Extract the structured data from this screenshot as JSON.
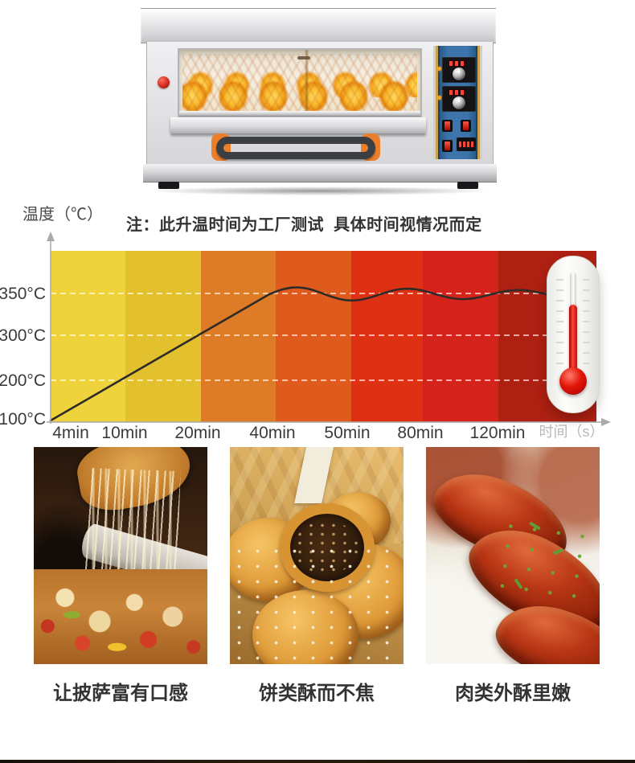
{
  "chart_data": {
    "type": "line",
    "note": "注：此升温时间为工厂测试  具体时间视情况而定",
    "ylabel": "温度（℃）",
    "xlabel": "时间（s）",
    "x_tick_labels": [
      "4min",
      "10min",
      "20min",
      "40min",
      "50min",
      "80min",
      "120min"
    ],
    "y_tick_labels": [
      "350°C",
      "300°C",
      "200°C",
      "100°C"
    ],
    "y_tick_values": [
      350,
      300,
      200,
      100
    ],
    "ylim": [
      100,
      400
    ],
    "series": [
      {
        "name": "oven-heating-curve",
        "points_time_min_vs_degC": [
          [
            0,
            100
          ],
          [
            4,
            125
          ],
          [
            10,
            165
          ],
          [
            20,
            230
          ],
          [
            40,
            350
          ],
          [
            50,
            350
          ],
          [
            80,
            350
          ],
          [
            120,
            350
          ]
        ],
        "behavior_after_40min": "oscillates slightly around 350°C"
      }
    ],
    "band_colors": [
      "#eed33c",
      "#e2c02e",
      "#de7b26",
      "#df5a1d",
      "#de3114",
      "#d3231a",
      "#ae2012"
    ],
    "line_color": "#2e2b28",
    "axis_color": "#a9a9a9",
    "gridlines": "dashed white horizontal lines at 350°C, 300°C and 200°C",
    "legend": "none"
  },
  "oven": {
    "panel_color": "#3d74ab",
    "knob_color": "#d32b1e",
    "handle_accent_color": "#ec7f2b"
  },
  "thermometer": {
    "mercury_color": "#e31507",
    "body_color": "#f5f5f2"
  },
  "foods": [
    {
      "name": "pizza",
      "caption": "让披萨富有口感"
    },
    {
      "name": "pastry",
      "caption": "饼类酥而不焦"
    },
    {
      "name": "roasted-meat",
      "caption": "肉类外酥里嫩"
    }
  ]
}
